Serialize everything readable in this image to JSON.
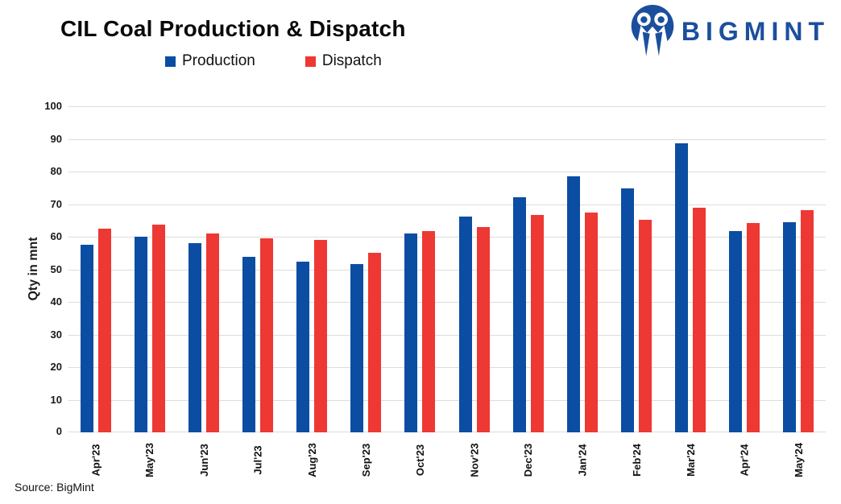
{
  "header": {
    "title": "CIL Coal Production & Dispatch",
    "logo_text": "BIGMINT"
  },
  "footer": {
    "source": "Source: BigMint"
  },
  "colors": {
    "production_blue": "#0B4DA2",
    "dispatch_red": "#EE3833",
    "logo_blue": "#1B4F9E",
    "gridline_gray": "#DCDCDC"
  },
  "chart_data": {
    "type": "bar",
    "title": "CIL Coal Production & Dispatch",
    "xlabel": "",
    "ylabel": "Qty in mnt",
    "ylim": [
      0,
      100
    ],
    "ytick_step": 10,
    "grid": true,
    "legend_position": "top",
    "categories": [
      "Apr'23",
      "May'23",
      "Jun'23",
      "Jul'23",
      "Aug'23",
      "Sep'23",
      "Oct'23",
      "Nov'23",
      "Dec'23",
      "Jan'24",
      "Feb'24",
      "Mar'24",
      "Apr'24",
      "May'24"
    ],
    "series": [
      {
        "name": "Production",
        "color": "#0B4DA2",
        "values": [
          57.6,
          60.0,
          58.0,
          53.8,
          52.3,
          51.5,
          61.1,
          66.1,
          72.0,
          78.4,
          74.7,
          88.7,
          61.8,
          64.4
        ]
      },
      {
        "name": "Dispatch",
        "color": "#EE3833",
        "values": [
          62.4,
          63.8,
          61.1,
          59.4,
          58.9,
          55.0,
          61.7,
          63.0,
          66.6,
          67.4,
          65.3,
          68.8,
          64.3,
          68.2
        ]
      }
    ]
  }
}
